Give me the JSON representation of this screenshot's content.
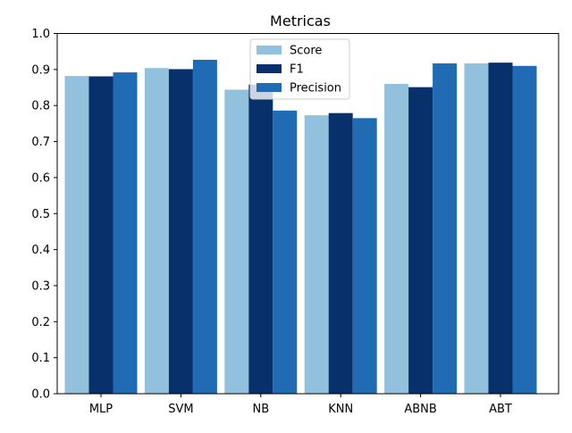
{
  "chart_data": {
    "type": "bar",
    "title": "Metricas",
    "xlabel": "",
    "ylabel": "",
    "categories": [
      "MLP",
      "SVM",
      "NB",
      "KNN",
      "ABNB",
      "ABT"
    ],
    "series": [
      {
        "name": "Score",
        "color": "#92c1dd",
        "values": [
          0.882,
          0.904,
          0.844,
          0.773,
          0.86,
          0.917
        ]
      },
      {
        "name": "F1",
        "color": "#08306b",
        "values": [
          0.881,
          0.901,
          0.858,
          0.779,
          0.851,
          0.919
        ]
      },
      {
        "name": "Precision",
        "color": "#1f6cb4",
        "values": [
          0.892,
          0.927,
          0.786,
          0.765,
          0.917,
          0.91
        ]
      }
    ],
    "ylim": [
      0,
      1.0
    ],
    "yticks": [
      "0.0",
      "0.1",
      "0.2",
      "0.3",
      "0.4",
      "0.5",
      "0.6",
      "0.7",
      "0.8",
      "0.9",
      "1.0"
    ],
    "grid": false,
    "legend_position": "top-center"
  }
}
